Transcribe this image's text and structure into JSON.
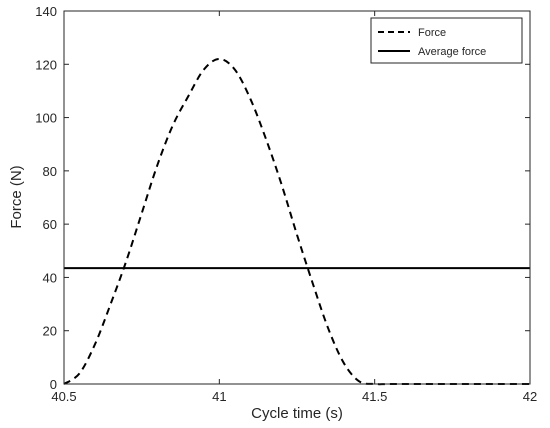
{
  "chart_data": {
    "type": "line",
    "title": "",
    "xlabel": "Cycle time (s)",
    "ylabel": "Force (N)",
    "xlim": [
      40.5,
      42
    ],
    "ylim": [
      0,
      140
    ],
    "xticks": [
      40.5,
      41,
      41.5,
      42
    ],
    "xtick_labels": [
      "40.5",
      "41",
      "41.5",
      "42"
    ],
    "yticks": [
      0,
      20,
      40,
      60,
      80,
      100,
      120,
      140
    ],
    "ytick_labels": [
      "0",
      "20",
      "40",
      "60",
      "80",
      "100",
      "120",
      "140"
    ],
    "grid": false,
    "legend": {
      "position": "top-right"
    },
    "series": [
      {
        "name": "Force",
        "style": "dashed",
        "color": "#000000",
        "x": [
          40.5,
          40.55,
          40.6,
          40.65,
          40.7,
          40.75,
          40.8,
          40.85,
          40.9,
          40.95,
          41.0,
          41.05,
          41.1,
          41.15,
          41.2,
          41.25,
          41.3,
          41.35,
          41.4,
          41.45,
          41.5,
          41.55,
          41.6,
          41.7,
          41.8,
          41.9,
          42.0
        ],
        "y": [
          0,
          4,
          15,
          30,
          46,
          64,
          82,
          97,
          108,
          118,
          122,
          118,
          107,
          92,
          75,
          56,
          38,
          21,
          8,
          1,
          0,
          0,
          0,
          0,
          0,
          0,
          0
        ]
      },
      {
        "name": "Average force",
        "style": "solid",
        "color": "#000000",
        "x": [
          40.5,
          42.0
        ],
        "y": [
          43.5,
          43.5
        ]
      }
    ]
  }
}
